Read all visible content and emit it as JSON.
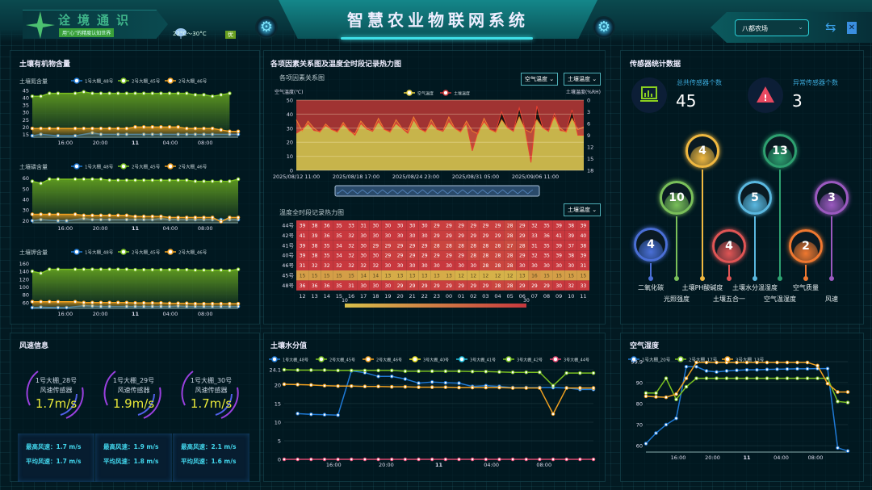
{
  "header": {
    "brand": "诠境通识",
    "slogan": "用“心”的精度认知世界",
    "weather_temp": "22°C～30°C",
    "air_quality": "优",
    "title": "智慧农业物联网系统",
    "farm": "八都农场",
    "icons": {
      "weather": "cloud-rain-icon",
      "settings": "gear-icon",
      "switch": "swap-icon",
      "clipboard": "clipboard-x-icon"
    }
  },
  "organic": {
    "title": "土壤有机物含量",
    "legend": [
      "1号大棚_48号",
      "2号大棚_45号",
      "2号大棚_46号"
    ],
    "colors": [
      "#1f7ad6",
      "#7ac020",
      "#f0a020"
    ],
    "xticks": [
      "16:00",
      "20:00",
      "11",
      "04:00",
      "08:00"
    ],
    "charts": [
      {
        "label": "土壤氮含量",
        "yticks": [
          15,
          20,
          25,
          30,
          35,
          40,
          45
        ],
        "ylim": [
          13,
          45
        ],
        "series": [
          [
            14,
            15,
            null,
            14,
            null,
            14,
            null,
            16,
            15,
            null,
            15,
            15,
            null,
            15,
            15,
            15,
            null,
            15,
            15,
            15,
            15,
            15,
            null,
            15,
            15
          ],
          [
            41,
            41,
            43,
            43,
            null,
            43,
            44,
            43,
            43,
            43,
            43,
            43,
            43,
            43,
            43,
            43,
            43,
            43,
            43,
            42,
            42,
            41,
            42,
            43,
            null
          ],
          [
            19,
            19,
            19,
            19,
            null,
            19,
            19,
            19,
            19,
            19,
            19,
            19,
            20,
            20,
            20,
            20,
            20,
            20,
            19,
            19,
            19,
            19,
            18,
            17,
            17
          ]
        ]
      },
      {
        "label": "土壤磷含量",
        "yticks": [
          20,
          30,
          40,
          50,
          60
        ],
        "ylim": [
          18,
          62
        ],
        "series": [
          [
            20,
            21,
            null,
            20,
            20,
            null,
            22,
            21,
            21,
            21,
            null,
            21,
            21,
            21,
            21,
            22,
            21,
            21,
            21,
            21,
            21,
            21,
            21,
            21,
            21
          ],
          [
            57,
            55,
            59,
            59,
            null,
            59,
            59,
            59,
            59,
            58,
            58,
            58,
            58,
            58,
            58,
            58,
            58,
            58,
            58,
            57,
            57,
            57,
            57,
            57,
            59
          ],
          [
            26,
            26,
            26,
            26,
            null,
            26,
            25,
            25,
            25,
            25,
            25,
            25,
            24,
            24,
            24,
            24,
            23,
            23,
            23,
            23,
            23,
            23,
            19,
            23,
            23
          ]
        ]
      },
      {
        "label": "土壤钾含量",
        "yticks": [
          60,
          80,
          100,
          120,
          140,
          160
        ],
        "ylim": [
          45,
          165
        ],
        "series": [
          [
            47,
            48,
            null,
            47,
            47,
            null,
            52,
            51,
            50,
            50,
            null,
            50,
            50,
            50,
            50,
            50,
            50,
            51,
            50,
            50,
            50,
            50,
            50,
            50,
            50
          ],
          [
            140,
            135,
            145,
            145,
            null,
            145,
            145,
            145,
            145,
            145,
            145,
            145,
            144,
            144,
            144,
            144,
            144,
            144,
            144,
            143,
            143,
            143,
            143,
            142,
            145
          ],
          [
            62,
            62,
            62,
            62,
            null,
            62,
            60,
            60,
            60,
            60,
            60,
            60,
            59,
            59,
            59,
            59,
            58,
            58,
            58,
            57,
            57,
            57,
            57,
            57,
            57
          ]
        ]
      }
    ]
  },
  "relation": {
    "title": "各项因素关系图及温度全时段记录热力图",
    "subtitle": "各项因素关系图",
    "dropdown1": "空气温度",
    "dropdown2": "土壤温度",
    "chart_data": {
      "type": "area",
      "ylabel_left": "空气温度(℃)",
      "ylabel_right": "土壤温度(%RH)",
      "ylim_left": [
        0,
        50
      ],
      "ylim_right": [
        0,
        18
      ],
      "right_inverted": true,
      "yticks_left": [
        0,
        10,
        20,
        30,
        40,
        50
      ],
      "yticks_right": [
        0,
        3,
        6,
        9,
        12,
        15,
        18
      ],
      "xticks": [
        "2025/08/12 11:00",
        "2025/08/18 17:00",
        "2025/08/24 23:00",
        "2025/08/31 05:00",
        "2025/09/06 11:00"
      ],
      "series": [
        {
          "name": "空气温度",
          "color": "#e8d040",
          "values": [
            36,
            28,
            35,
            30,
            27,
            33,
            29,
            27,
            34,
            28,
            26,
            35,
            30,
            28,
            37,
            29,
            27,
            36,
            30,
            28,
            38,
            30,
            27,
            36,
            29,
            28,
            38,
            30,
            27,
            35,
            28,
            26,
            37,
            29,
            27,
            36,
            30,
            28,
            38,
            29,
            27,
            36,
            30,
            28,
            38,
            30,
            27,
            37,
            29,
            31
          ]
        },
        {
          "name": "土壤温度",
          "color": "#d03838",
          "values": [
            8.5,
            7.5,
            6,
            7.8,
            8,
            6.5,
            7.5,
            8,
            6.2,
            7.6,
            9,
            6,
            7.4,
            8,
            5.5,
            7.5,
            8,
            6,
            7.2,
            8.5,
            5,
            7.4,
            8,
            6,
            7.5,
            8,
            5.5,
            7.2,
            8,
            6,
            13,
            8,
            5.5,
            7.5,
            8,
            3,
            7,
            8,
            2,
            7.5,
            16,
            1.5,
            7,
            8,
            3.5,
            7.8,
            8,
            2.5,
            9,
            9
          ]
        }
      ]
    }
  },
  "heatmap": {
    "subtitle": "温度全时段记录热力图",
    "dropdown": "土壤温度",
    "chart_data": {
      "type": "heatmap",
      "rows": [
        "44号",
        "42号",
        "41号",
        "40号",
        "46号",
        "45号",
        "48号"
      ],
      "cols": [
        "12",
        "13",
        "14",
        "15",
        "16",
        "17",
        "18",
        "19",
        "20",
        "21",
        "22",
        "23",
        "00",
        "01",
        "02",
        "03",
        "04",
        "05",
        "06",
        "07",
        "08",
        "09",
        "10",
        "11"
      ],
      "values": [
        [
          39,
          38,
          36,
          35,
          33,
          31,
          30,
          30,
          30,
          30,
          30,
          29,
          29,
          29,
          29,
          29,
          29,
          28,
          29,
          32,
          35,
          39,
          38,
          39
        ],
        [
          41,
          39,
          36,
          35,
          32,
          30,
          30,
          30,
          30,
          30,
          30,
          29,
          29,
          29,
          29,
          29,
          29,
          28,
          29,
          33,
          36,
          41,
          39,
          40
        ],
        [
          39,
          38,
          35,
          34,
          32,
          30,
          29,
          29,
          29,
          29,
          29,
          28,
          28,
          28,
          28,
          28,
          28,
          27,
          28,
          31,
          35,
          39,
          37,
          38
        ],
        [
          39,
          38,
          35,
          34,
          32,
          30,
          30,
          29,
          29,
          29,
          29,
          29,
          29,
          29,
          28,
          28,
          28,
          28,
          29,
          32,
          35,
          39,
          38,
          39
        ],
        [
          31,
          32,
          32,
          32,
          32,
          32,
          32,
          30,
          30,
          30,
          30,
          30,
          30,
          30,
          30,
          28,
          28,
          28,
          30,
          30,
          30,
          30,
          30,
          31
        ],
        [
          15,
          15,
          15,
          15,
          15,
          14,
          14,
          13,
          13,
          13,
          13,
          13,
          13,
          12,
          12,
          12,
          12,
          12,
          13,
          16,
          15,
          15,
          15,
          15
        ],
        [
          36,
          36,
          36,
          35,
          31,
          30,
          30,
          30,
          29,
          29,
          29,
          29,
          29,
          29,
          29,
          29,
          28,
          28,
          29,
          29,
          29,
          30,
          32,
          33
        ]
      ],
      "scale_min": "10",
      "scale_max": "30",
      "colors": [
        "#d8c04a",
        "#c8383e"
      ]
    }
  },
  "sensors": {
    "title": "传感器统计数据",
    "total_label": "总共传感器个数",
    "total": "45",
    "abnormal_label": "异常传感器个数",
    "abnormal": "3",
    "items": [
      {
        "name": "二氧化碳",
        "count": "4",
        "color": "#4a6fd6"
      },
      {
        "name": "光照强度",
        "count": "10",
        "color": "#7ac05a"
      },
      {
        "name": "土壤PH酸碱度",
        "count": "4",
        "color": "#f0b840"
      },
      {
        "name": "土壤五合一",
        "count": "4",
        "color": "#e05555"
      },
      {
        "name": "土壤水分温湿度",
        "count": "5",
        "color": "#5ab8e0"
      },
      {
        "name": "空气温湿度",
        "count": "13",
        "color": "#2ea070"
      },
      {
        "name": "空气质量",
        "count": "2",
        "color": "#f07830"
      },
      {
        "name": "风速",
        "count": "3",
        "color": "#9b59c0"
      }
    ]
  },
  "wind": {
    "title": "风速信息",
    "cards": [
      {
        "name": "1号大棚_28号",
        "type": "风速传感器",
        "value": "1.7m/s",
        "max": "最高风速：1.7 m/s",
        "avg": "平均风速：1.7 m/s"
      },
      {
        "name": "1号大棚_29号",
        "type": "风速传感器",
        "value": "1.9m/s",
        "max": "最高风速：1.9 m/s",
        "avg": "平均风速：1.8 m/s"
      },
      {
        "name": "1号大棚_30号",
        "type": "风速传感器",
        "value": "1.7m/s",
        "max": "最高风速：2.1 m/s",
        "avg": "平均风速：1.6 m/s"
      }
    ]
  },
  "moisture": {
    "title": "土壤水分值",
    "chart_data": {
      "type": "line",
      "yticks": [
        0,
        5,
        10,
        15,
        20,
        24.1
      ],
      "ylim": [
        0,
        24.1
      ],
      "xticks": [
        "16:00",
        "20:00",
        "11",
        "04:00",
        "08:00"
      ],
      "series": [
        {
          "name": "1号大棚_48号",
          "color": "#1f7ad6",
          "values": [
            null,
            12.3,
            12.1,
            12.0,
            11.9,
            23.8,
            23.3,
            22.3,
            22.3,
            21.6,
            20.5,
            20.8,
            20.6,
            20.5,
            19.6,
            19.8,
            19.6,
            19.3,
            19.3,
            19.3,
            19.3,
            19.2,
            18.8,
            18.8
          ]
        },
        {
          "name": "2号大棚_45号",
          "color": "#7ac020",
          "values": [
            24.1,
            24.0,
            24.0,
            24.0,
            23.9,
            23.9,
            23.9,
            23.9,
            23.9,
            23.7,
            23.7,
            23.7,
            23.7,
            23.7,
            23.6,
            23.6,
            23.5,
            23.4,
            23.4,
            23.4,
            19.8,
            23.2,
            23.2,
            23.2
          ]
        },
        {
          "name": "2号大棚_46号",
          "color": "#f0a020",
          "values": [
            20.2,
            20.1,
            20.0,
            19.8,
            19.7,
            19.7,
            19.6,
            19.6,
            19.5,
            19.5,
            19.4,
            19.4,
            19.4,
            19.3,
            19.3,
            19.3,
            19.3,
            19.2,
            19.2,
            19.2,
            12.2,
            19.2,
            19.2,
            19.2
          ]
        },
        {
          "name": "3号大棚_40号",
          "color": "#e8e020",
          "values": []
        },
        {
          "name": "3号大棚_41号",
          "color": "#20c0e0",
          "values": []
        },
        {
          "name": "3号大棚_42号",
          "color": "#7ac020",
          "values": []
        },
        {
          "name": "3号大棚_44号",
          "color": "#e04870",
          "values": [
            0,
            0,
            0,
            0,
            0,
            0,
            0,
            0,
            0,
            0,
            0,
            0,
            0,
            0,
            0,
            0,
            0,
            0,
            0,
            0,
            0,
            0,
            0,
            0
          ]
        }
      ]
    }
  },
  "humidity": {
    "title": "空气湿度",
    "chart_data": {
      "type": "line",
      "yticks": [
        60,
        70,
        80,
        90,
        99.9
      ],
      "ylim": [
        57,
        99.9
      ],
      "xticks": [
        "16:00",
        "20:00",
        "11",
        "04:00",
        "08:00"
      ],
      "series": [
        {
          "name": "1号大棚_20号",
          "color": "#1f7ad6",
          "values": [
            61,
            66,
            70,
            73,
            97.5,
            97.5,
            95.5,
            95,
            95.5,
            95.8,
            96,
            96,
            96.2,
            96.3,
            96.4,
            96.5,
            96.5,
            96.6,
            96.6,
            59,
            57.5
          ]
        },
        {
          "name": "2号大棚_17号",
          "color": "#7ac020",
          "values": [
            85,
            85,
            92,
            82,
            88,
            92,
            92,
            92,
            92,
            92,
            92,
            92,
            92,
            92,
            92,
            92,
            92,
            92,
            92,
            81,
            80.5
          ]
        },
        {
          "name": "3号大棚_13号",
          "color": "#f0a020",
          "values": [
            83.5,
            83.2,
            83,
            84.5,
            92,
            99.5,
            99.5,
            99.5,
            99.5,
            99.5,
            99.5,
            99.5,
            99.5,
            99.5,
            99.5,
            99.5,
            99.5,
            98,
            89.5,
            85.5,
            85.5
          ]
        }
      ]
    }
  }
}
